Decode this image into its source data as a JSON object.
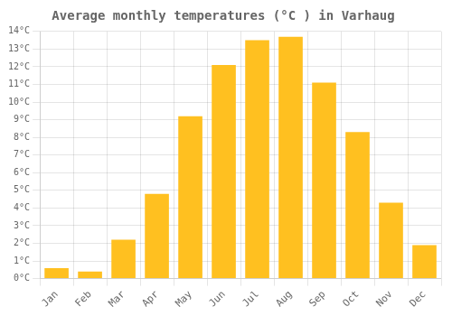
{
  "chart_data": {
    "type": "bar",
    "title": "Average monthly temperatures (°C ) in Varhaug",
    "categories": [
      "Jan",
      "Feb",
      "Mar",
      "Apr",
      "May",
      "Jun",
      "Jul",
      "Aug",
      "Sep",
      "Oct",
      "Nov",
      "Dec"
    ],
    "values": [
      0.6,
      0.4,
      2.2,
      4.8,
      9.2,
      12.1,
      13.5,
      13.7,
      11.1,
      8.3,
      4.3,
      1.9
    ],
    "color": "#FFC020",
    "ylim": [
      0,
      14
    ],
    "yticks": [
      {
        "value": 0,
        "label": "0°C"
      },
      {
        "value": 1,
        "label": "1°C"
      },
      {
        "value": 2,
        "label": "2°C"
      },
      {
        "value": 3,
        "label": "3°C"
      },
      {
        "value": 4,
        "label": "4°C"
      },
      {
        "value": 5,
        "label": "5°C"
      },
      {
        "value": 6,
        "label": "6°C"
      },
      {
        "value": 7,
        "label": "7°C"
      },
      {
        "value": 8,
        "label": "8°C"
      },
      {
        "value": 9,
        "label": "9°C"
      },
      {
        "value": 10,
        "label": "10°C"
      },
      {
        "value": 11,
        "label": "11°C"
      },
      {
        "value": 12,
        "label": "12°C"
      },
      {
        "value": 13,
        "label": "13°C"
      },
      {
        "value": 14,
        "label": "14°C"
      }
    ],
    "grid": true
  }
}
